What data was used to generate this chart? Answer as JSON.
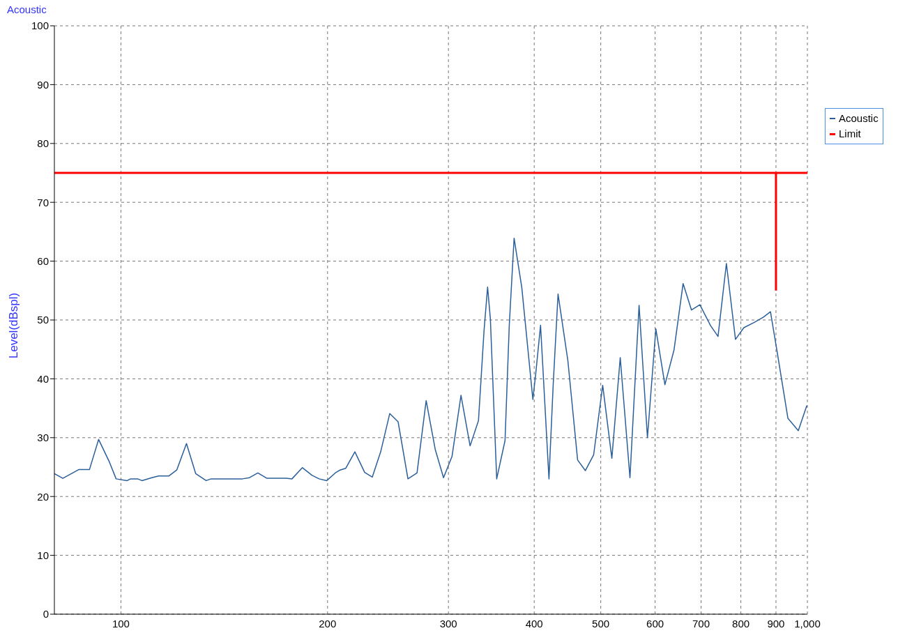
{
  "chart_data": {
    "type": "line",
    "title": "Acoustic",
    "ylabel": "Level(dBspl)",
    "log": "x",
    "xlim": [
      80,
      1000
    ],
    "xticks": [
      100,
      200,
      300,
      400,
      500,
      600,
      700,
      800,
      900,
      {
        "value": 1000,
        "label": "1,000"
      }
    ],
    "ylim": [
      0,
      100
    ],
    "yticks": [
      0,
      10,
      20,
      30,
      40,
      50,
      60,
      70,
      80,
      90,
      100
    ],
    "grid": true,
    "legend": "top right",
    "marker": "none",
    "line_style": "solid",
    "series": [
      {
        "name": "Acoustic",
        "color": "#2b5f9a",
        "x": [
          80,
          82.3,
          86.9,
          90,
          92.8,
          96.1,
          98.4,
          102.1,
          103.3,
          105.8,
          107.3,
          110.9,
          113.5,
          117.5,
          120.6,
          124.6,
          128.5,
          133.1,
          135.3,
          150.3,
          153.9,
          158.3,
          163.2,
          174.2,
          177.5,
          183.8,
          189.9,
          194.4,
          199.5,
          205.2,
          208.6,
          212.6,
          219.2,
          226.5,
          232.4,
          239,
          246.4,
          253.4,
          261.9,
          270,
          278.4,
          287,
          295.1,
          303.6,
          312.9,
          322.6,
          331.8,
          338.1,
          342.1,
          345.3,
          352.7,
          362.7,
          367.9,
          373.9,
          383.7,
          398.2,
          402,
          408.6,
          420.3,
          426.3,
          433.3,
          447.8,
          462.7,
          474.8,
          488.3,
          503.3,
          519,
          533.8,
          551.5,
          568.6,
          584.8,
          601.5,
          620.1,
          639.3,
          659.1,
          677.9,
          697.2,
          722.2,
          741,
          762.1,
          785.7,
          808.1,
          837.1,
          863,
          883.5,
          904.4,
          936.7,
          970,
          997.7,
          1000
        ],
        "values": [
          23.9,
          23.1,
          24.6,
          24.6,
          29.7,
          26,
          23,
          22.7,
          23,
          23,
          22.7,
          23.2,
          23.5,
          23.5,
          24.5,
          29,
          23.9,
          22.7,
          23,
          23,
          23.2,
          24,
          23.1,
          23.1,
          23,
          24.9,
          23.6,
          23,
          22.7,
          24,
          24.5,
          24.8,
          27.6,
          24.1,
          23.3,
          27.6,
          34.1,
          32.7,
          23,
          24,
          36.3,
          28,
          23.2,
          26.8,
          37.2,
          28.6,
          32.9,
          48.3,
          55.6,
          50.2,
          23,
          29.5,
          49.1,
          63.9,
          55.5,
          36.5,
          40.8,
          49.1,
          23,
          39,
          54.4,
          43.1,
          26.2,
          24.4,
          27.1,
          38.9,
          26.5,
          43.6,
          23.2,
          52.5,
          30,
          48.5,
          39,
          44.9,
          56.2,
          51.7,
          52.6,
          49.1,
          47.2,
          59.6,
          46.7,
          48.7,
          49.6,
          50.5,
          51.4,
          44.3,
          33.3,
          31.2,
          35.4,
          35.3
        ]
      },
      {
        "name": "Limit",
        "color": "#ff0000",
        "x": [
          80,
          1000,
          900,
          900
        ],
        "values": [
          75,
          75,
          75,
          55
        ]
      }
    ]
  }
}
